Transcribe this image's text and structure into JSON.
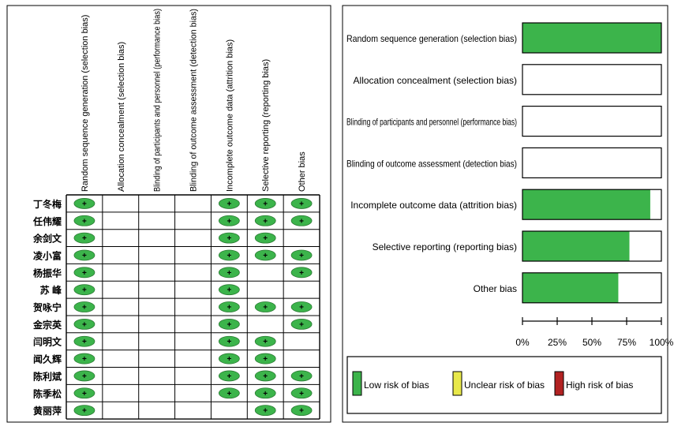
{
  "chart_data": [
    {
      "type": "table",
      "columns": [
        "Random sequence generation (selection bias)",
        "Allocation concealment (selection bias)",
        "Blinding of participants and personnel (performance bias)",
        "Blinding of outcome assessment (detection bias)",
        "Incomplete outcome data (attrition bias)",
        "Selective reporting (reporting bias)",
        "Other bias"
      ],
      "rows": [
        {
          "study": "丁冬梅",
          "cells": [
            "+",
            "",
            "",
            "",
            "+",
            "+",
            "+"
          ]
        },
        {
          "study": "任伟耀",
          "cells": [
            "+",
            "",
            "",
            "",
            "+",
            "+",
            "+"
          ]
        },
        {
          "study": "余剑文",
          "cells": [
            "+",
            "",
            "",
            "",
            "+",
            "+",
            ""
          ]
        },
        {
          "study": "凌小富",
          "cells": [
            "+",
            "",
            "",
            "",
            "+",
            "+",
            "+"
          ]
        },
        {
          "study": "杨振华",
          "cells": [
            "+",
            "",
            "",
            "",
            "+",
            "",
            "+"
          ]
        },
        {
          "study": "苏 峰",
          "cells": [
            "+",
            "",
            "",
            "",
            "+",
            "",
            ""
          ]
        },
        {
          "study": "贺咏宁",
          "cells": [
            "+",
            "",
            "",
            "",
            "+",
            "+",
            "+"
          ]
        },
        {
          "study": "金宗英",
          "cells": [
            "+",
            "",
            "",
            "",
            "+",
            "",
            "+"
          ]
        },
        {
          "study": "闫明文",
          "cells": [
            "+",
            "",
            "",
            "",
            "+",
            "+",
            ""
          ]
        },
        {
          "study": "闻久辉",
          "cells": [
            "+",
            "",
            "",
            "",
            "+",
            "+",
            ""
          ]
        },
        {
          "study": "陈利斌",
          "cells": [
            "+",
            "",
            "",
            "",
            "+",
            "+",
            "+"
          ]
        },
        {
          "study": "陈季松",
          "cells": [
            "+",
            "",
            "",
            "",
            "+",
            "+",
            "+"
          ]
        },
        {
          "study": "黄丽萍",
          "cells": [
            "+",
            "",
            "",
            "",
            "",
            "+",
            "+"
          ]
        }
      ],
      "symbol": "+",
      "colors": {
        "low": "#3cb44b"
      }
    },
    {
      "type": "bar",
      "orientation": "horizontal",
      "stacked": true,
      "categories": [
        "Random sequence generation (selection bias)",
        "Allocation concealment (selection bias)",
        "Blinding of participants and personnel (performance bias)",
        "Blinding of outcome assessment (detection bias)",
        "Incomplete outcome data (attrition bias)",
        "Selective reporting (reporting bias)",
        "Other bias"
      ],
      "series": [
        {
          "name": "Low risk of bias",
          "color": "#3cb44b",
          "values": [
            100,
            0,
            0,
            0,
            92,
            77,
            69
          ]
        },
        {
          "name": "Unclear risk of bias",
          "color": "#e8e84a",
          "values": [
            0,
            0,
            0,
            0,
            0,
            0,
            0
          ]
        },
        {
          "name": "High risk of bias",
          "color": "#b22222",
          "values": [
            0,
            0,
            0,
            0,
            0,
            0,
            0
          ]
        }
      ],
      "xlim": [
        0,
        100
      ],
      "xticks": [
        "0%",
        "25%",
        "50%",
        "75%",
        "100%"
      ],
      "legend": "bottom"
    }
  ]
}
